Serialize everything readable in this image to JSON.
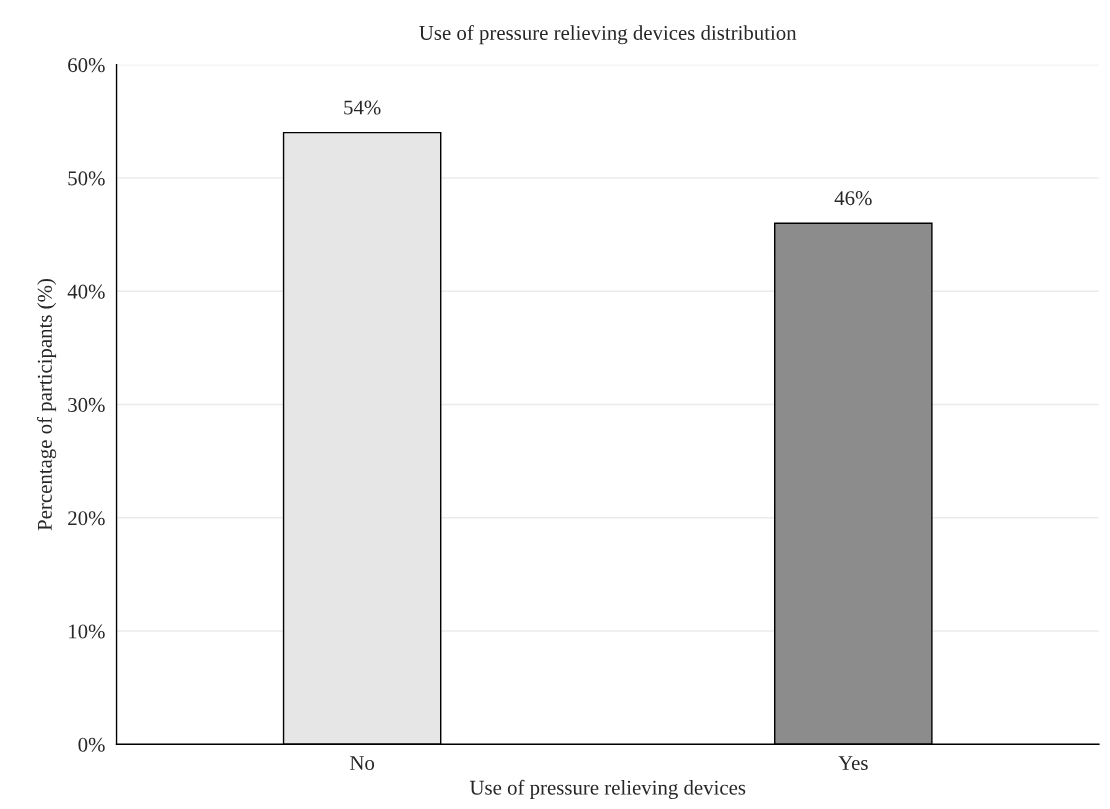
{
  "chart_data": {
    "type": "bar",
    "title": "Use of pressure relieving devices distribution",
    "xlabel": "Use of pressure relieving devices",
    "ylabel": "Percentage of participants (%)",
    "categories": [
      "No",
      "Yes"
    ],
    "values": [
      54,
      46
    ],
    "value_labels": [
      "54%",
      "46%"
    ],
    "colors": [
      "#e6e6e6",
      "#8c8c8c"
    ],
    "ylim": [
      0,
      60
    ],
    "yticks": [
      {
        "value": 0,
        "label": "0%"
      },
      {
        "value": 10,
        "label": "10%"
      },
      {
        "value": 20,
        "label": "20%"
      },
      {
        "value": 30,
        "label": "30%"
      },
      {
        "value": 40,
        "label": "40%"
      },
      {
        "value": 50,
        "label": "50%"
      },
      {
        "value": 60,
        "label": "60%"
      }
    ],
    "grid": "y",
    "legend": false
  }
}
